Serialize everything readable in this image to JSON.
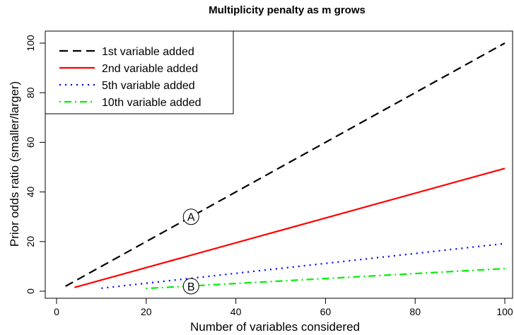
{
  "chart_data": {
    "type": "line",
    "title": "Multiplicity penalty as m grows",
    "xlabel": "Number of variables considered",
    "ylabel": "Prior odds ratio (smaller/larger)",
    "xlim": [
      0,
      100
    ],
    "ylim": [
      0,
      100
    ],
    "xticks": [
      0,
      20,
      40,
      60,
      80,
      100
    ],
    "yticks": [
      0,
      20,
      40,
      60,
      80,
      100
    ],
    "grid": false,
    "legend_position": "top-left",
    "series": [
      {
        "name": "1st variable added",
        "color": "#000000",
        "dash": "dashed",
        "x": [
          2,
          100
        ],
        "y": [
          2,
          100
        ]
      },
      {
        "name": "2nd variable added",
        "color": "#ff0000",
        "dash": "solid",
        "x": [
          4,
          100
        ],
        "y": [
          1.5,
          49.5
        ]
      },
      {
        "name": "5th variable added",
        "color": "#0000ff",
        "dash": "dotted",
        "x": [
          10,
          100
        ],
        "y": [
          1.2,
          19.2
        ]
      },
      {
        "name": "10th variable added",
        "color": "#00ee00",
        "dash": "dotdash",
        "x": [
          20,
          100
        ],
        "y": [
          1.1,
          9.1
        ]
      }
    ],
    "annotations": [
      {
        "label": "A",
        "x": 30,
        "y": 30
      },
      {
        "label": "B",
        "x": 30,
        "y": 2
      }
    ]
  }
}
